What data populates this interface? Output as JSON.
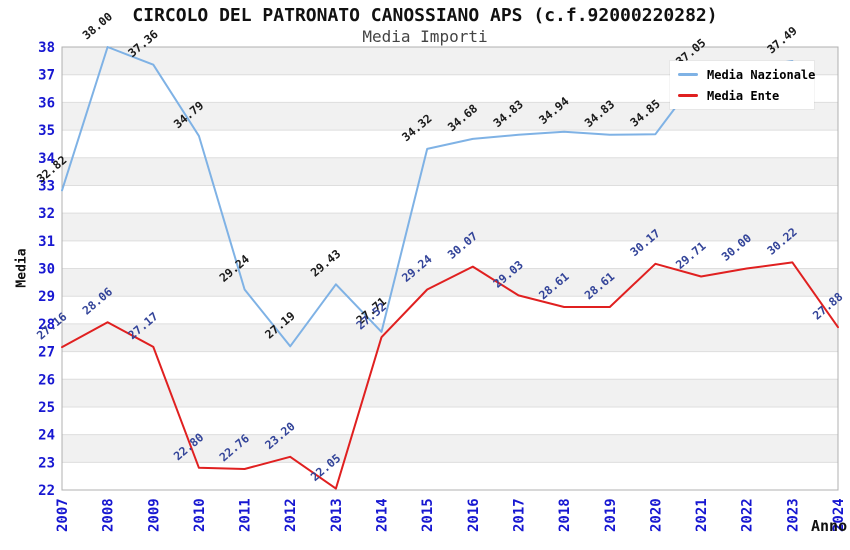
{
  "page": {
    "background": "#ffffff"
  },
  "chart_data": {
    "type": "line",
    "title": "CIRCOLO DEL PATRONATO CANOSSIANO APS (c.f.92000220282)",
    "subtitle": "Media Importi",
    "xlabel": "Anno",
    "ylabel": "Media",
    "x": [
      "2007",
      "2008",
      "2009",
      "2010",
      "2011",
      "2012",
      "2013",
      "2014",
      "2015",
      "2016",
      "2017",
      "2018",
      "2019",
      "2020",
      "2021",
      "2022",
      "2023",
      "2024"
    ],
    "ylim": [
      22,
      38
    ],
    "y_tick_step": 1,
    "grid": "horizontal-gridlines-with-alternating-bands",
    "legend_position": "top-right-inside-plot",
    "point_label_format": "2-decimals-rotated",
    "series": [
      {
        "name": "Media Nazionale",
        "color": "#7fb2e5",
        "label_color": "#1a1a1a",
        "values": [
          32.82,
          38.0,
          37.36,
          34.79,
          29.24,
          27.19,
          29.43,
          27.71,
          34.32,
          34.68,
          34.83,
          34.94,
          34.83,
          34.85,
          37.05,
          null,
          37.49,
          null
        ]
      },
      {
        "name": "Media Ente",
        "color": "#e02020",
        "label_color": "#334499",
        "values": [
          27.16,
          28.06,
          27.17,
          22.8,
          22.76,
          23.2,
          22.05,
          27.52,
          29.24,
          30.07,
          29.03,
          28.61,
          28.61,
          30.17,
          29.71,
          30.0,
          30.22,
          27.88
        ]
      }
    ],
    "colors": {
      "axis_tick_label": "#1717d1",
      "band_fill": "#f1f1f1",
      "gridline": "#dedede",
      "plot_border": "#b0b0b0",
      "title_color": "#111111",
      "subtitle_color": "#444444"
    }
  }
}
